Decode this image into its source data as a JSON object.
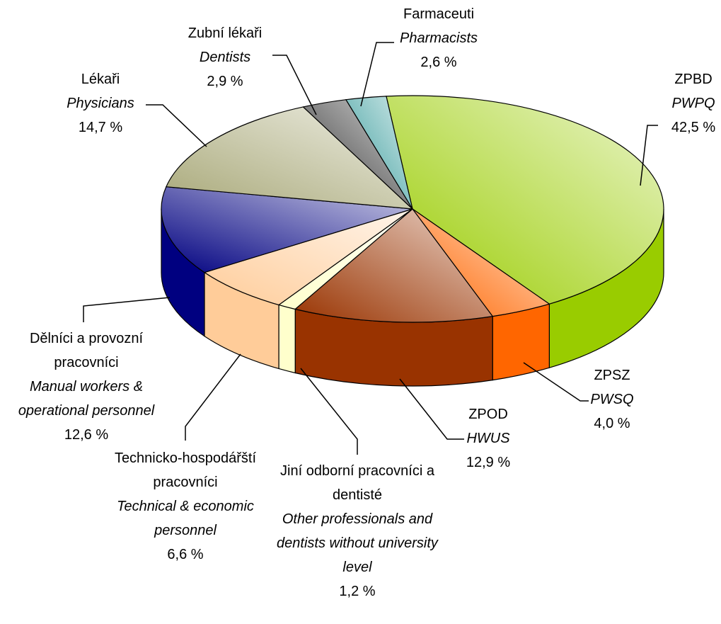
{
  "chart_data": {
    "type": "pie",
    "categories": [
      "ZPBD",
      "ZPSZ",
      "ZPOD",
      "Jiní odborní pracovníci a dentisté",
      "Technicko-hospodářští pracovníci",
      "Dělníci a provozní pracovníci",
      "Lékaři",
      "Zubní lékaři",
      "Farmaceuti"
    ],
    "categories_en": [
      "PWPQ",
      "PWSQ",
      "HWUS",
      "Other professionals and dentists without university level",
      "Technical & economic personnel",
      "Manual workers & operational personnel",
      "Physicians",
      "Dentists",
      "Pharmacists"
    ],
    "values": [
      42.5,
      4.0,
      12.9,
      1.2,
      6.6,
      12.6,
      14.7,
      2.9,
      2.6
    ],
    "value_labels": [
      "42,5 %",
      "4,0 %",
      "12,9 %",
      "1,2 %",
      "6,6 %",
      "12,6 %",
      "14,7 %",
      "2,9 %",
      "2,6 %"
    ],
    "colors": [
      "#99cc00",
      "#ff6600",
      "#993300",
      "#ffffcc",
      "#ffcc99",
      "#000080",
      "#a8a878",
      "#333333",
      "#339999"
    ]
  }
}
